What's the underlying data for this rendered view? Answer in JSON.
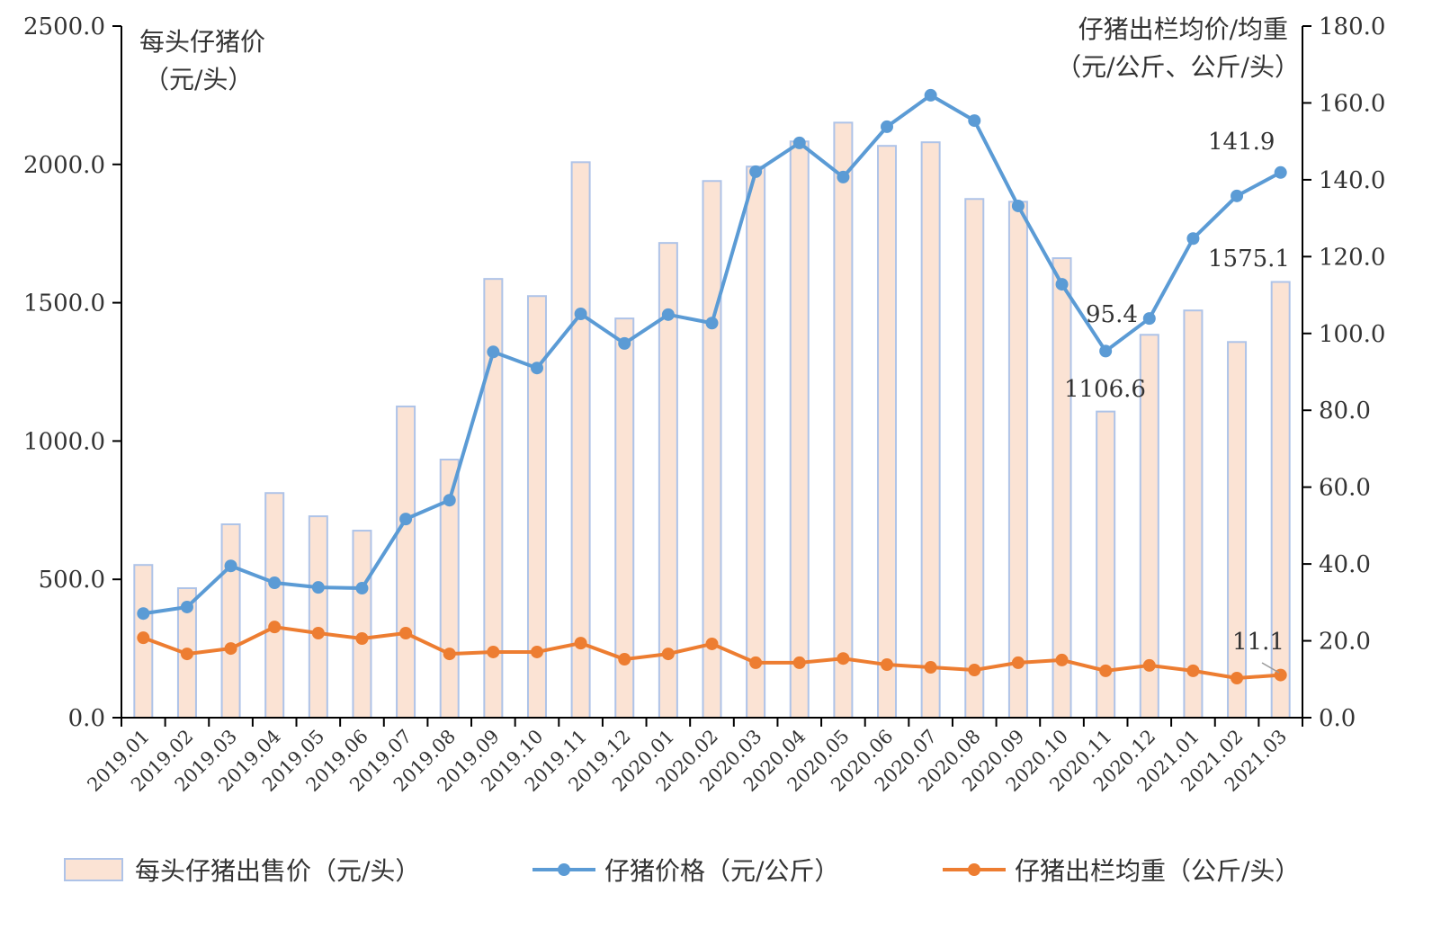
{
  "chart_data": {
    "type": "bar+line",
    "categories": [
      "2019.01",
      "2019.02",
      "2019.03",
      "2019.04",
      "2019.05",
      "2019.06",
      "2019.07",
      "2019.08",
      "2019.09",
      "2019.10",
      "2019.11",
      "2019.12",
      "2020.01",
      "2020.02",
      "2020.03",
      "2020.04",
      "2020.05",
      "2020.06",
      "2020.07",
      "2020.08",
      "2020.09",
      "2020.10",
      "2020.11",
      "2020.12",
      "2021.01",
      "2021.02",
      "2021.03"
    ],
    "left_axis": {
      "title_line1": "每头仔猪价",
      "title_line2": "（元/头）",
      "ylim": [
        0,
        2500
      ],
      "ticks": [
        "0.0",
        "500.0",
        "1000.0",
        "1500.0",
        "2000.0",
        "2500.0"
      ]
    },
    "right_axis": {
      "title_line1": "仔猪出栏均价/均重",
      "title_line2": "（元/公斤、公斤/头）",
      "ylim": [
        0,
        180
      ],
      "ticks": [
        "0.0",
        "20.0",
        "40.0",
        "60.0",
        "80.0",
        "100.0",
        "120.0",
        "140.0",
        "160.0",
        "180.0"
      ]
    },
    "series": [
      {
        "name": "每头仔猪出售价（元/头）",
        "type": "bar",
        "axis": "left",
        "color": "#fbe3d4",
        "stroke": "#aec3e8",
        "values": [
          552,
          468,
          699,
          812,
          728,
          676,
          1125,
          933,
          1586,
          1524,
          2008,
          1443,
          1716,
          1940,
          1992,
          2083,
          2151,
          2067,
          2080,
          1875,
          1865,
          1661,
          1106.6,
          1384,
          1472,
          1358,
          1575.1
        ]
      },
      {
        "name": "仔猪价格（元/公斤）",
        "type": "line",
        "axis": "right",
        "color": "#5b9bd5",
        "values": [
          27.1,
          28.8,
          39.5,
          35.1,
          33.9,
          33.7,
          51.7,
          56.6,
          95.2,
          91.0,
          105.1,
          97.4,
          104.9,
          102.7,
          142.1,
          149.6,
          140.7,
          153.8,
          162.0,
          155.4,
          133.2,
          112.8,
          95.4,
          103.9,
          124.7,
          135.8,
          141.9
        ]
      },
      {
        "name": "仔猪出栏均重（公斤/头）",
        "type": "line",
        "axis": "right",
        "color": "#ed7d31",
        "values": [
          20.8,
          16.6,
          18.0,
          23.6,
          22.0,
          20.6,
          22.0,
          16.6,
          17.1,
          17.1,
          19.4,
          15.2,
          16.6,
          19.2,
          14.3,
          14.3,
          15.4,
          13.8,
          13.1,
          12.4,
          14.3,
          15.0,
          12.2,
          13.6,
          12.2,
          10.3,
          11.1
        ]
      }
    ],
    "annotations": [
      "141.9",
      "1575.1",
      "95.4",
      "1106.6",
      "11.1"
    ],
    "legend_position": "bottom",
    "grid": false
  }
}
